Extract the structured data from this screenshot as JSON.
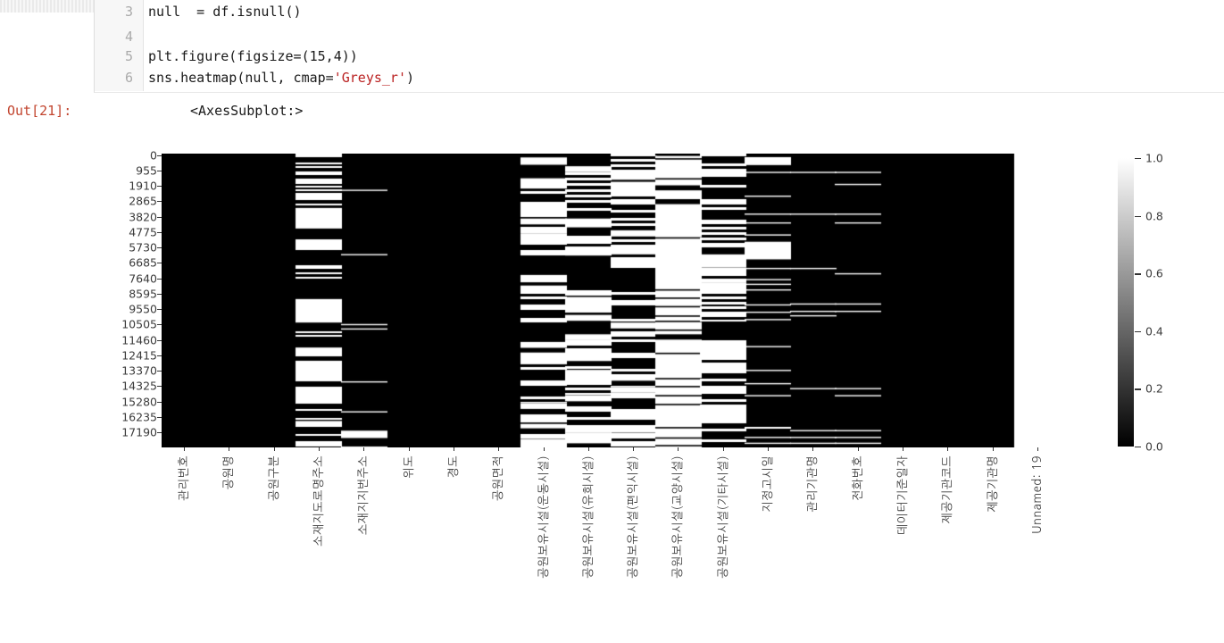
{
  "notebook": {
    "cell": {
      "lines": [
        {
          "num": "3",
          "before": "null  = df.isnull()",
          "str": "",
          "after": ""
        },
        {
          "num": "4",
          "before": "",
          "str": "",
          "after": ""
        },
        {
          "num": "5",
          "before": "plt.figure(figsize=(15,4))",
          "str": "",
          "after": ""
        },
        {
          "num": "6",
          "before": "sns.heatmap(null, cmap=",
          "str": "'Greys_r'",
          "after": ")"
        }
      ]
    },
    "output": {
      "prompt": "Out[21]:",
      "value": "<AxesSubplot:>"
    }
  },
  "colors": {
    "out_prompt": "#c2452f",
    "code_string": "#ba2121",
    "code_text": "#1a1a1a",
    "line_number": "#aaaaaa",
    "tick_label": "#3b3b3b",
    "heat_null": "#ffffff",
    "heat_notnull": "#000000"
  },
  "chart_data": {
    "type": "heatmap",
    "title": "",
    "xlabel": "",
    "ylabel": "",
    "colormap": "Greys_r",
    "value_range": [
      0,
      1
    ],
    "grid": false,
    "legend_position": "right-colorbar",
    "x_label_rotation": 90,
    "y_tick_labels": [
      "0",
      "955",
      "1910",
      "2865",
      "3820",
      "4775",
      "5730",
      "6685",
      "7640",
      "8595",
      "9550",
      "10505",
      "11460",
      "12415",
      "13370",
      "14325",
      "15280",
      "16235",
      "17190"
    ],
    "colorbar_ticks": [
      {
        "label": "1.0",
        "value": 1.0
      },
      {
        "label": "0.8",
        "value": 0.8
      },
      {
        "label": "0.6",
        "value": 0.6
      },
      {
        "label": "0.4",
        "value": 0.4
      },
      {
        "label": "0.2",
        "value": 0.2
      },
      {
        "label": "0.0",
        "value": 0.0
      }
    ],
    "columns": [
      {
        "label": "관리번호",
        "null_fraction_est": 0.0,
        "segments": []
      },
      {
        "label": "공원명",
        "null_fraction_est": 0.0,
        "segments": []
      },
      {
        "label": "공원구분",
        "null_fraction_est": 0.0,
        "segments": []
      },
      {
        "label": "소재지도로명주소",
        "null_fraction_est": 0.42,
        "segments": [
          [
            "s",
            0.0,
            0.185,
            0.45,
            2
          ],
          [
            "w",
            0.185,
            0.255
          ],
          [
            "s",
            0.255,
            0.33,
            0.45,
            2
          ],
          [
            "s",
            0.33,
            0.42,
            0.25,
            2
          ],
          [
            "s",
            0.42,
            0.475,
            0.06,
            2
          ],
          [
            "s",
            0.475,
            0.495,
            0.5,
            2
          ],
          [
            "w",
            0.495,
            0.575
          ],
          [
            "s",
            0.575,
            0.655,
            0.45,
            2
          ],
          [
            "w",
            0.66,
            0.69
          ],
          [
            "s",
            0.69,
            0.705,
            0.15,
            2
          ],
          [
            "w",
            0.705,
            0.775
          ],
          [
            "s",
            0.775,
            0.805,
            0.3,
            2
          ],
          [
            "w",
            0.805,
            0.845
          ],
          [
            "s",
            0.845,
            0.875,
            0.15,
            2
          ],
          [
            "s",
            0.875,
            0.91,
            0.4,
            2
          ],
          [
            "w",
            0.91,
            0.93
          ],
          [
            "s",
            0.93,
            1.0,
            0.5,
            2
          ]
        ]
      },
      {
        "label": "소재지지번주소",
        "null_fraction_est": 0.05,
        "segments": [
          [
            "L",
            [
              0.125,
              0.344,
              0.582,
              0.597,
              0.777,
              0.879,
              0.999
            ]
          ],
          [
            "w",
            0.943,
            0.968
          ]
        ]
      },
      {
        "label": "위도",
        "null_fraction_est": 0.0,
        "segments": []
      },
      {
        "label": "경도",
        "null_fraction_est": 0.0,
        "segments": []
      },
      {
        "label": "공원면적",
        "null_fraction_est": 0.0,
        "segments": []
      },
      {
        "label": "공원보유시설(운동시설)",
        "null_fraction_est": 0.45,
        "segments": [
          [
            "s",
            0.0,
            0.013,
            0.3,
            3
          ],
          [
            "w",
            0.013,
            0.038
          ],
          [
            "s",
            0.038,
            0.084,
            0.5,
            3
          ],
          [
            "w",
            0.084,
            0.119
          ],
          [
            "s",
            0.119,
            0.165,
            0.35,
            3
          ],
          [
            "s",
            0.165,
            0.206,
            0.6,
            3
          ],
          [
            "s",
            0.206,
            0.221,
            0.4,
            3
          ],
          [
            "w",
            0.221,
            0.241
          ],
          [
            "s",
            0.241,
            0.271,
            0.45,
            3
          ],
          [
            "w",
            0.271,
            0.292
          ],
          [
            "s",
            0.292,
            0.413,
            0.18,
            3
          ],
          [
            "w",
            0.413,
            0.438
          ],
          [
            "s",
            0.438,
            0.449,
            0.3,
            3
          ],
          [
            "w",
            0.449,
            0.469
          ],
          [
            "s",
            0.469,
            0.575,
            0.5,
            3
          ],
          [
            "s",
            0.575,
            0.641,
            0.15,
            3
          ],
          [
            "w",
            0.641,
            0.661
          ],
          [
            "s",
            0.661,
            0.677,
            0.3,
            3
          ],
          [
            "w",
            0.677,
            0.717
          ],
          [
            "s",
            0.717,
            0.753,
            0.4,
            3
          ],
          [
            "s",
            0.753,
            0.798,
            0.65,
            3
          ],
          [
            "s",
            0.798,
            0.849,
            0.45,
            3
          ],
          [
            "w",
            0.849,
            0.869
          ],
          [
            "s",
            0.869,
            0.92,
            0.5,
            3
          ],
          [
            "w",
            0.92,
            0.935
          ],
          [
            "s",
            0.935,
            0.971,
            0.45,
            3
          ],
          [
            "w",
            0.971,
            0.991
          ],
          [
            "s",
            0.991,
            1.0,
            0.4,
            3
          ]
        ]
      },
      {
        "label": "공원보유시설(유희시설)",
        "null_fraction_est": 0.44,
        "segments": [
          [
            "s",
            0.0,
            0.043,
            0.45,
            3
          ],
          [
            "w",
            0.043,
            0.063
          ],
          [
            "s",
            0.063,
            0.123,
            0.45,
            3
          ],
          [
            "s",
            0.123,
            0.148,
            0.65,
            3
          ],
          [
            "s",
            0.148,
            0.221,
            0.4,
            3
          ],
          [
            "w",
            0.221,
            0.251
          ],
          [
            "s",
            0.251,
            0.322,
            0.45,
            3
          ],
          [
            "w",
            0.322,
            0.347
          ],
          [
            "s",
            0.347,
            0.488,
            0.2,
            3
          ],
          [
            "w",
            0.488,
            0.524
          ],
          [
            "s",
            0.524,
            0.549,
            0.35,
            3
          ],
          [
            "w",
            0.549,
            0.569
          ],
          [
            "s",
            0.569,
            0.615,
            0.25,
            3
          ],
          [
            "w",
            0.615,
            0.635
          ],
          [
            "s",
            0.635,
            0.686,
            0.45,
            3
          ],
          [
            "w",
            0.686,
            0.706
          ],
          [
            "s",
            0.706,
            0.736,
            0.4,
            3
          ],
          [
            "w",
            0.736,
            0.761
          ],
          [
            "s",
            0.761,
            0.822,
            0.5,
            3
          ],
          [
            "w",
            0.822,
            0.843
          ],
          [
            "s",
            0.843,
            0.93,
            0.45,
            3
          ],
          [
            "w",
            0.93,
            0.951
          ],
          [
            "s",
            0.951,
            0.966,
            0.3,
            3
          ],
          [
            "w",
            0.966,
            0.986
          ],
          [
            "s",
            0.986,
            1.0,
            0.4,
            3
          ]
        ]
      },
      {
        "label": "공원보유시설(편익시설)",
        "null_fraction_est": 0.46,
        "segments": [
          [
            "s",
            0.0,
            0.063,
            0.5,
            3
          ],
          [
            "w",
            0.063,
            0.089
          ],
          [
            "s",
            0.089,
            0.096,
            0.3,
            3
          ],
          [
            "w",
            0.096,
            0.119
          ],
          [
            "s",
            0.119,
            0.261,
            0.5,
            3
          ],
          [
            "w",
            0.261,
            0.282
          ],
          [
            "s",
            0.282,
            0.322,
            0.4,
            3
          ],
          [
            "w",
            0.322,
            0.343
          ],
          [
            "s",
            0.343,
            0.575,
            0.38,
            3
          ],
          [
            "w",
            0.575,
            0.595
          ],
          [
            "s",
            0.595,
            0.753,
            0.45,
            3
          ],
          [
            "w",
            0.753,
            0.773
          ],
          [
            "s",
            0.773,
            0.794,
            0.3,
            3
          ],
          [
            "w",
            0.794,
            0.814
          ],
          [
            "s",
            0.814,
            0.93,
            0.5,
            3
          ],
          [
            "w",
            0.93,
            0.95
          ],
          [
            "s",
            0.95,
            1.0,
            0.55,
            3
          ]
        ]
      },
      {
        "label": "공원보유시설(교양시설)",
        "null_fraction_est": 0.8,
        "segments": [
          [
            "b",
            0.0,
            0.008
          ],
          [
            "w",
            0.008,
            1.0
          ],
          [
            "b",
            0.108,
            0.125
          ],
          [
            "b",
            0.155,
            0.172
          ],
          [
            "b",
            0.615,
            0.633
          ],
          [
            "D",
            [
              0.018,
              0.086,
              0.287,
              0.464,
              0.492,
              0.521,
              0.553,
              0.571,
              0.601,
              0.68,
              0.766,
              0.793,
              0.824,
              0.854,
              0.933,
              0.968,
              0.994
            ]
          ]
        ]
      },
      {
        "label": "공원보유시설(기타시설)",
        "null_fraction_est": 0.58,
        "segments": [
          [
            "s",
            0.0,
            0.033,
            0.3,
            3
          ],
          [
            "s",
            0.033,
            0.125,
            0.62,
            3
          ],
          [
            "s",
            0.125,
            0.155,
            0.25,
            3
          ],
          [
            "s",
            0.155,
            0.206,
            0.75,
            3
          ],
          [
            "s",
            0.206,
            0.241,
            0.3,
            3
          ],
          [
            "s",
            0.241,
            0.32,
            0.65,
            3
          ],
          [
            "s",
            0.32,
            0.343,
            0.15,
            3
          ],
          [
            "w",
            0.343,
            0.388
          ],
          [
            "s",
            0.388,
            0.438,
            0.5,
            3
          ],
          [
            "w",
            0.438,
            0.469
          ],
          [
            "s",
            0.469,
            0.52,
            0.45,
            3
          ],
          [
            "s",
            0.52,
            0.57,
            0.7,
            3
          ],
          [
            "s",
            0.57,
            0.64,
            0.3,
            3
          ],
          [
            "w",
            0.64,
            0.675
          ],
          [
            "s",
            0.675,
            0.73,
            0.45,
            3
          ],
          [
            "s",
            0.73,
            0.79,
            0.7,
            3
          ],
          [
            "s",
            0.79,
            0.86,
            0.4,
            3
          ],
          [
            "s",
            0.86,
            0.9,
            0.7,
            3
          ],
          [
            "s",
            0.9,
            1.0,
            0.55,
            3
          ]
        ]
      },
      {
        "label": "지정고시일",
        "null_fraction_est": 0.13,
        "segments": [
          [
            "w",
            0.012,
            0.039
          ],
          [
            "w",
            0.3,
            0.36
          ],
          [
            "s",
            0.905,
            0.935,
            0.5,
            2
          ],
          [
            "L",
            [
              0.064,
              0.145,
              0.206,
              0.236,
              0.277,
              0.391,
              0.429,
              0.445,
              0.464,
              0.515,
              0.54,
              0.565,
              0.657,
              0.738,
              0.783,
              0.824,
              0.966,
              0.986
            ]
          ]
        ]
      },
      {
        "label": "관리기관명",
        "null_fraction_est": 0.03,
        "segments": [
          [
            "L",
            [
              0.064,
              0.206,
              0.391,
              0.512,
              0.537,
              0.552,
              0.8,
              0.943,
              0.966,
              0.986
            ]
          ]
        ]
      },
      {
        "label": "전화번호",
        "null_fraction_est": 0.035,
        "segments": [
          [
            "L",
            [
              0.064,
              0.105,
              0.206,
              0.236,
              0.409,
              0.512,
              0.537,
              0.8,
              0.824,
              0.943,
              0.966,
              0.986
            ]
          ]
        ]
      },
      {
        "label": "데이터기준일자",
        "null_fraction_est": 0.0,
        "segments": []
      },
      {
        "label": "제공기관코드",
        "null_fraction_est": 0.0,
        "segments": []
      },
      {
        "label": "제공기관명",
        "null_fraction_est": 0.0,
        "segments": []
      },
      {
        "label": "Unnamed: 19",
        "null_fraction_est": 1.0,
        "segments": [
          [
            "w",
            0.0,
            1.0
          ]
        ]
      }
    ]
  }
}
